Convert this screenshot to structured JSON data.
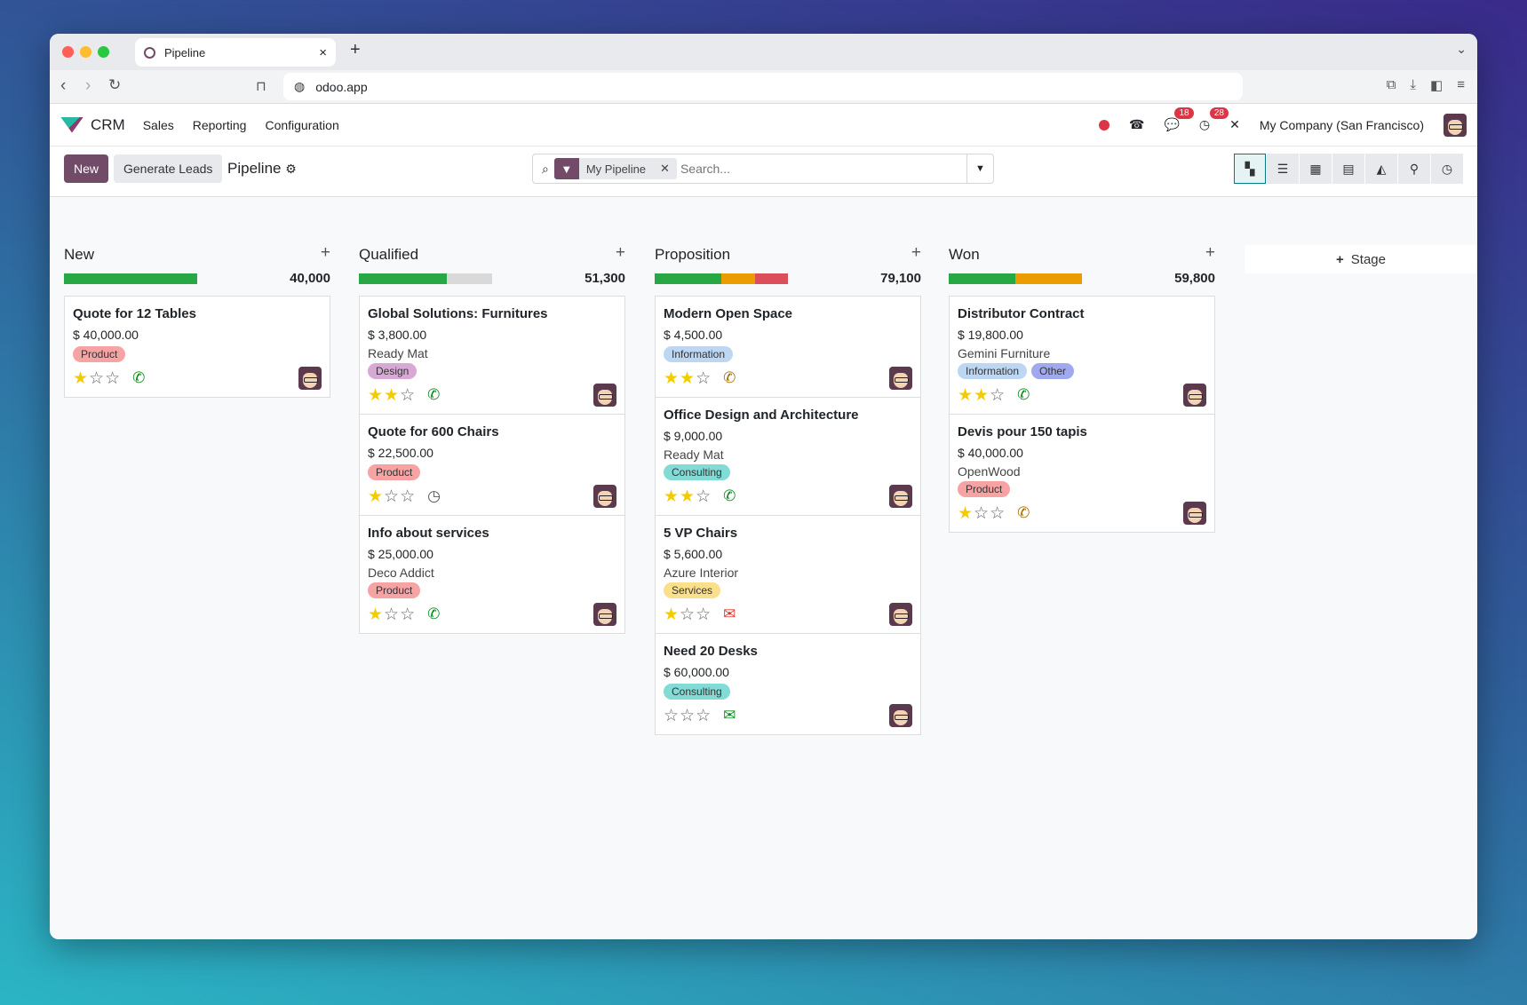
{
  "browser": {
    "tab_title": "Pipeline",
    "url": "odoo.app"
  },
  "navbar": {
    "app": "CRM",
    "menus": [
      "Sales",
      "Reporting",
      "Configuration"
    ],
    "messages_count": "18",
    "activities_count": "28",
    "company": "My Company (San Francisco)"
  },
  "control": {
    "new_label": "New",
    "generate_label": "Generate Leads",
    "title": "Pipeline",
    "facet": "My Pipeline",
    "search_placeholder": "Search...",
    "views": [
      "kanban",
      "list",
      "calendar",
      "pivot",
      "graph",
      "map",
      "activity"
    ],
    "active_view": "kanban"
  },
  "colors": {
    "brand": "#714b67",
    "green": "#28a745",
    "orange": "#e99d00",
    "red": "#dc4e5a",
    "grey": "#d9d9d9"
  },
  "add_stage_label": "Stage",
  "columns": [
    {
      "title": "New",
      "total": "40,000",
      "progress": [
        {
          "color": "green",
          "pct": 100
        }
      ],
      "cards": [
        {
          "title": "Quote for 12 Tables",
          "amount": "$ 40,000.00",
          "tags": [
            "Product"
          ],
          "stars": 1,
          "activity": "phone-green"
        }
      ]
    },
    {
      "title": "Qualified",
      "total": "51,300",
      "progress": [
        {
          "color": "green",
          "pct": 66
        },
        {
          "color": "grey",
          "pct": 34
        }
      ],
      "cards": [
        {
          "title": "Global Solutions: Furnitures",
          "amount": "$ 3,800.00",
          "customer": "Ready Mat",
          "tags": [
            "Design"
          ],
          "stars": 2,
          "activity": "phone-green"
        },
        {
          "title": "Quote for 600 Chairs",
          "amount": "$ 22,500.00",
          "tags": [
            "Product"
          ],
          "stars": 1,
          "activity": "clock"
        },
        {
          "title": "Info about services",
          "amount": "$ 25,000.00",
          "customer": "Deco Addict",
          "tags": [
            "Product"
          ],
          "stars": 1,
          "activity": "phone-green"
        }
      ]
    },
    {
      "title": "Proposition",
      "total": "79,100",
      "progress": [
        {
          "color": "green",
          "pct": 50
        },
        {
          "color": "orange",
          "pct": 25
        },
        {
          "color": "red",
          "pct": 25
        }
      ],
      "cards": [
        {
          "title": "Modern Open Space",
          "amount": "$ 4,500.00",
          "tags": [
            "Information"
          ],
          "stars": 2,
          "activity": "phone-orange"
        },
        {
          "title": "Office Design and Architecture",
          "amount": "$ 9,000.00",
          "customer": "Ready Mat",
          "tags": [
            "Consulting"
          ],
          "stars": 2,
          "activity": "phone-green"
        },
        {
          "title": "5 VP Chairs",
          "amount": "$ 5,600.00",
          "customer": "Azure Interior",
          "tags": [
            "Services"
          ],
          "stars": 1,
          "activity": "mail-red"
        },
        {
          "title": "Need 20 Desks",
          "amount": "$ 60,000.00",
          "tags": [
            "Consulting"
          ],
          "stars": 0,
          "activity": "mail-green"
        }
      ]
    },
    {
      "title": "Won",
      "total": "59,800",
      "progress": [
        {
          "color": "green",
          "pct": 50
        },
        {
          "color": "orange",
          "pct": 50
        }
      ],
      "cards": [
        {
          "title": "Distributor Contract",
          "amount": "$ 19,800.00",
          "customer": "Gemini Furniture",
          "tags": [
            "Information",
            "Other"
          ],
          "stars": 2,
          "activity": "phone-green"
        },
        {
          "title": "Devis pour 150 tapis",
          "amount": "$ 40,000.00",
          "customer": "OpenWood",
          "tags": [
            "Product"
          ],
          "stars": 1,
          "activity": "phone-orange"
        }
      ]
    }
  ],
  "tag_colors": {
    "Product": "#f7a3a3",
    "Design": "#d9a9d6",
    "Information": "#bdd7f3",
    "Other": "#a0a8ee",
    "Consulting": "#82dbd5",
    "Services": "#fbe08c"
  }
}
